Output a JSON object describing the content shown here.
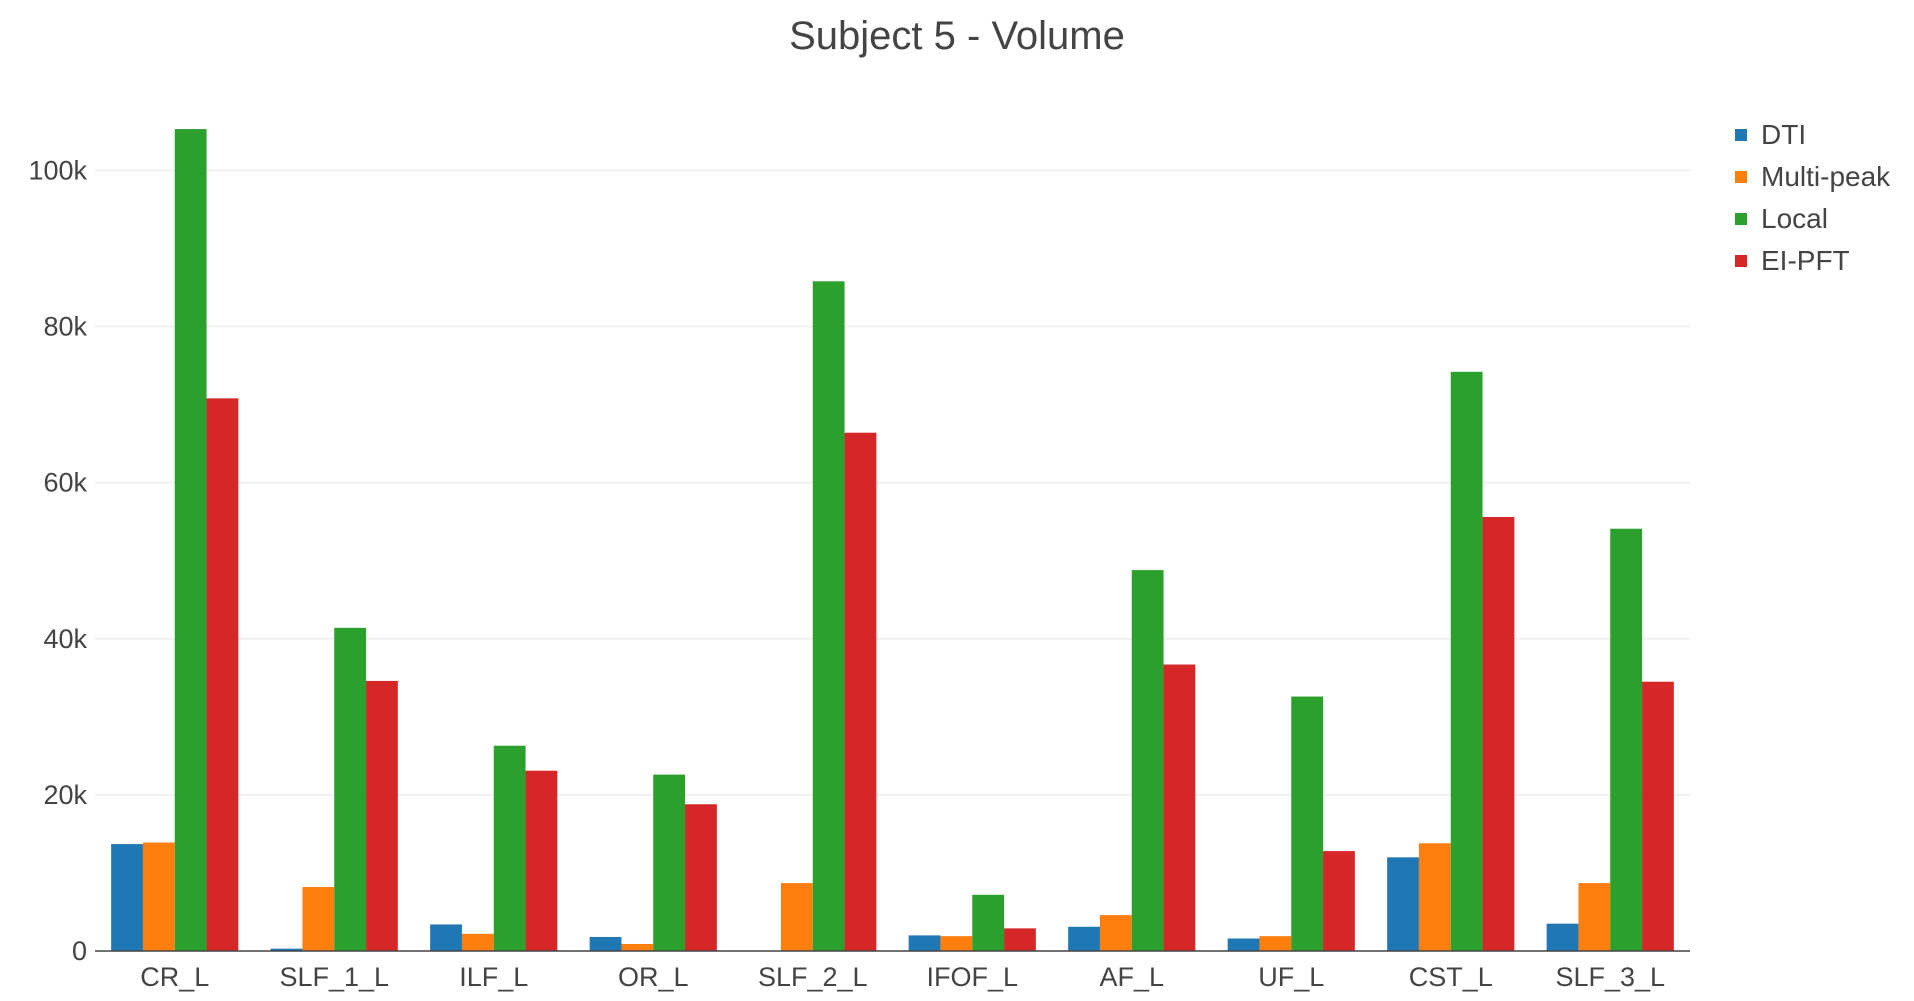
{
  "chart_data": {
    "type": "bar",
    "title": "Subject 5 - Volume",
    "xlabel": "",
    "ylabel": "",
    "categories": [
      "CR_L",
      "SLF_1_L",
      "ILF_L",
      "OR_L",
      "SLF_2_L",
      "IFOF_L",
      "AF_L",
      "UF_L",
      "CST_L",
      "SLF_3_L"
    ],
    "series": [
      {
        "name": "DTI",
        "color": "#1f77b4",
        "values": [
          13700,
          300,
          3400,
          1800,
          0,
          2000,
          3100,
          1600,
          12000,
          3500
        ]
      },
      {
        "name": "Multi-peak",
        "color": "#ff7f0e",
        "values": [
          13900,
          8200,
          2200,
          900,
          8700,
          1900,
          4600,
          1900,
          13800,
          8700
        ]
      },
      {
        "name": "Local",
        "color": "#2ca02c",
        "values": [
          105300,
          41400,
          26300,
          22600,
          85800,
          7200,
          48800,
          32600,
          74200,
          54100
        ]
      },
      {
        "name": "EI-PFT",
        "color": "#d62728",
        "values": [
          70800,
          34600,
          23100,
          18800,
          66400,
          2900,
          36700,
          12800,
          55600,
          34500
        ]
      }
    ],
    "ylim": [
      0,
      108000
    ],
    "yticks": [
      0,
      20000,
      40000,
      60000,
      80000,
      100000
    ],
    "ytick_labels": [
      "0",
      "20k",
      "40k",
      "60k",
      "80k",
      "100k"
    ],
    "grid": true,
    "legend_position": "top-right"
  }
}
